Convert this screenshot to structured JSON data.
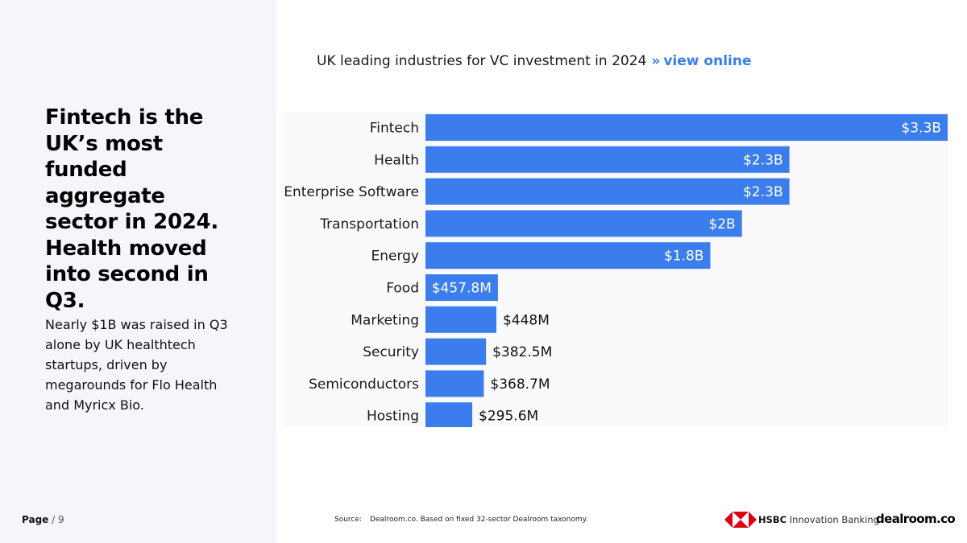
{
  "left": {
    "headline": "Fintech is the UK’s most funded aggregate sector in 2024. Health moved into second in Q3.",
    "body": "Nearly $1B was raised in Q3 alone by UK healthtech startups, driven by megarounds for Flo Health and Myricx Bio."
  },
  "header": {
    "chart_title": "UK leading industries for VC investment in 2024",
    "separator": "»",
    "link_label": "view online"
  },
  "footer": {
    "page_label": "Page",
    "page_sep": "/",
    "page_total": "9",
    "source_label": "Source:",
    "source_text": "Dealroom.co. Based on fixed 32-sector Dealroom taxonomy.",
    "hsbc_brand": "HSBC",
    "hsbc_rest": "Innovation Banking",
    "dealroom_logo": "dealroom.co"
  },
  "colors": {
    "bar": "#3b7ded",
    "accent": "#3b7ded",
    "label_inside": "#ffffff",
    "label_outside": "#111111"
  },
  "chart_data": {
    "type": "bar",
    "orientation": "horizontal",
    "title": "UK leading industries for VC investment in 2024",
    "unit": "USD",
    "categories": [
      "Fintech",
      "Health",
      "Enterprise Software",
      "Transportation",
      "Energy",
      "Food",
      "Marketing",
      "Security",
      "Semiconductors",
      "Hosting"
    ],
    "values": [
      3300000000,
      2300000000,
      2300000000,
      2000000000,
      1800000000,
      457800000,
      448000000,
      382500000,
      368700000,
      295600000
    ],
    "labels": [
      "$3.3B",
      "$2.3B",
      "$2.3B",
      "$2B",
      "$1.8B",
      "$457.8M",
      "$448M",
      "$382.5M",
      "$368.7M",
      "$295.6M"
    ],
    "xlim": [
      0,
      3300000000
    ],
    "grid": false,
    "legend": "none"
  }
}
